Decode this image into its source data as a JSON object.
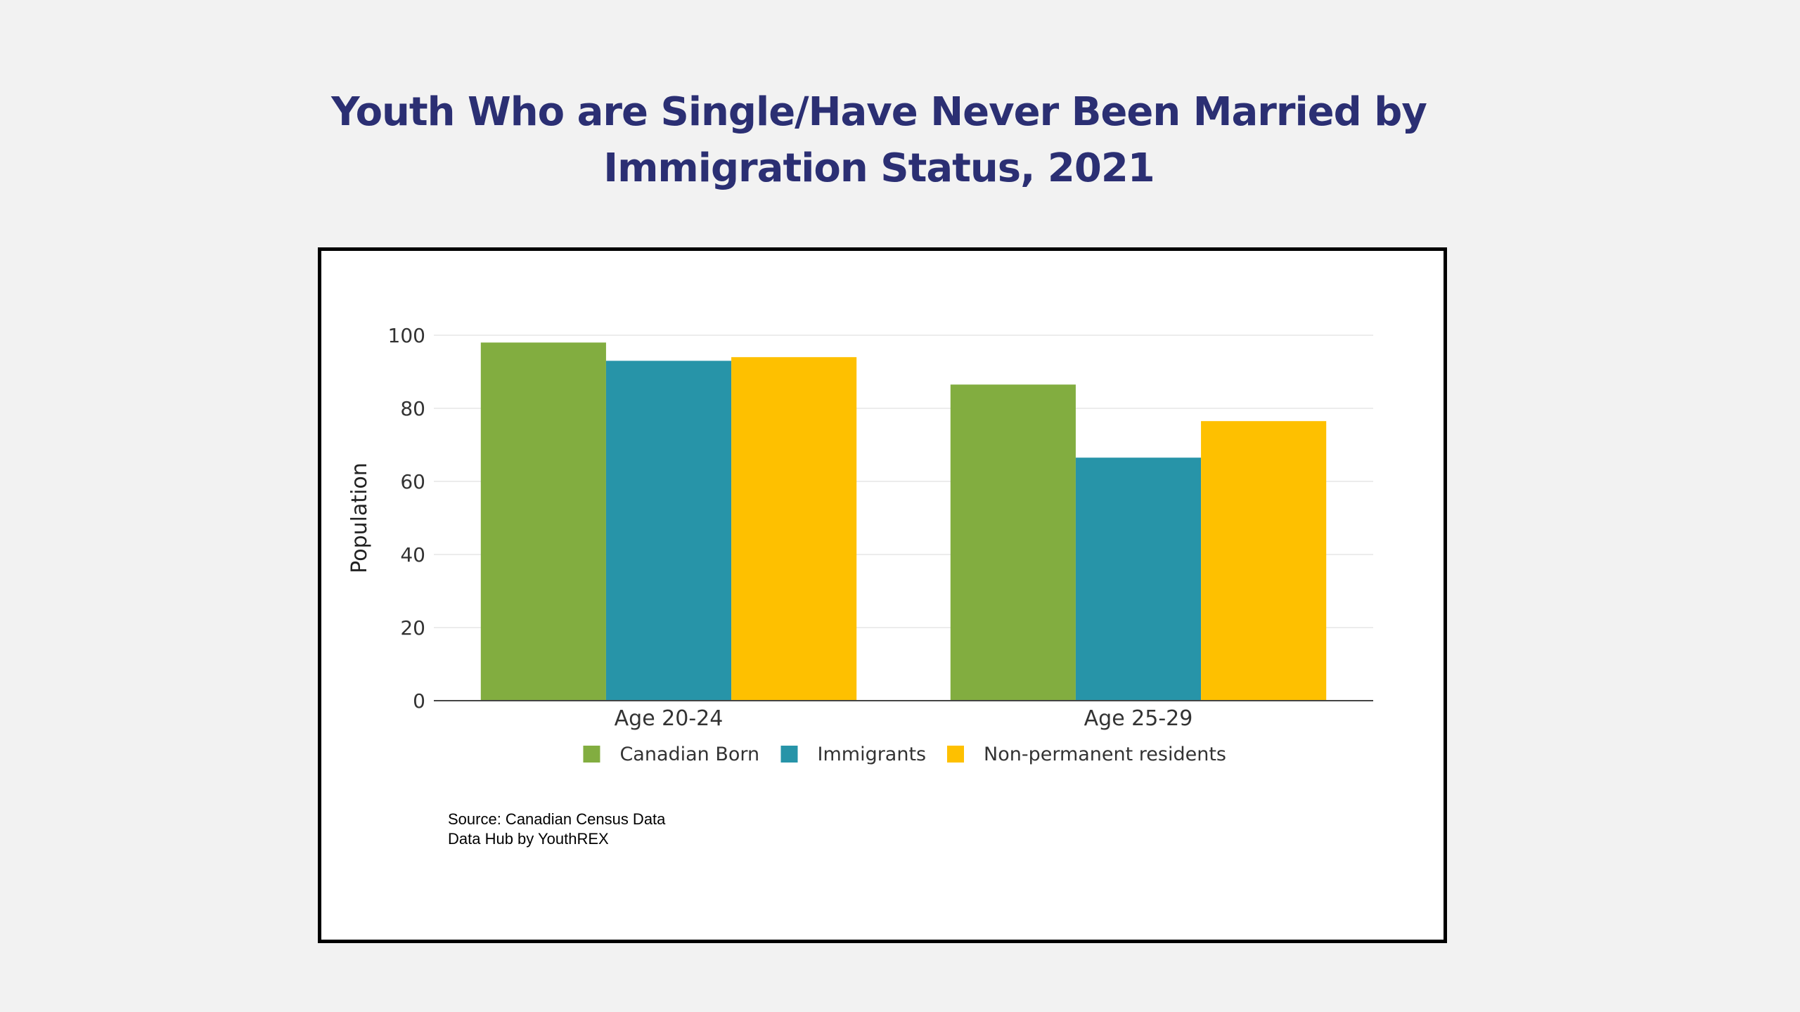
{
  "title_lines": [
    "Youth Who are Single/Have Never Been Married by",
    "Immigration Status, 2021"
  ],
  "source_lines": [
    "Source: Canadian Census Data",
    "Data Hub by YouthREX"
  ],
  "chart_data": {
    "type": "bar",
    "title": "Youth Who are Single/Have Never Been Married by Immigration Status, 2021",
    "xlabel": "",
    "ylabel": "Population",
    "ylim": [
      0,
      100
    ],
    "yticks": [
      0,
      20,
      40,
      60,
      80,
      100
    ],
    "grid": true,
    "legend_position": "bottom",
    "categories": [
      "Age 20-24",
      "Age 25-29"
    ],
    "series": [
      {
        "name": "Canadian Born",
        "color": "#82ad40",
        "values": [
          98,
          86.5
        ]
      },
      {
        "name": "Immigrants",
        "color": "#2794a8",
        "values": [
          93,
          66.5
        ]
      },
      {
        "name": "Non-permanent residents",
        "color": "#fec000",
        "values": [
          94,
          76.5
        ]
      }
    ]
  }
}
